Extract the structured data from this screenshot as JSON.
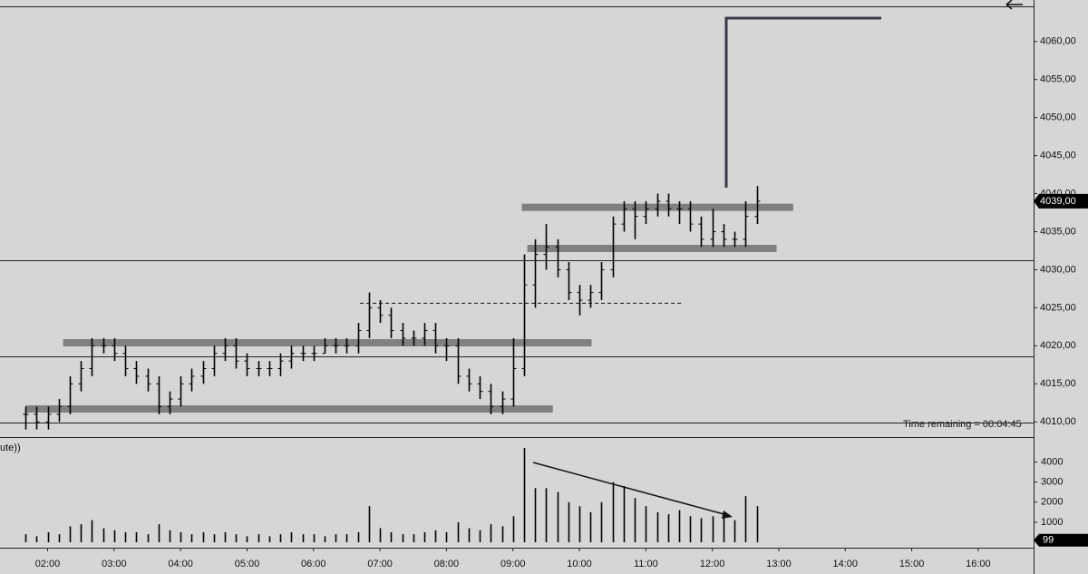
{
  "chart_data": [
    {
      "type": "ohlc",
      "x": [
        "01:40",
        "01:50",
        "02:00",
        "02:10",
        "02:20",
        "02:30",
        "02:40",
        "02:50",
        "03:00",
        "03:10",
        "03:20",
        "03:30",
        "03:40",
        "03:50",
        "04:00",
        "04:10",
        "04:20",
        "04:30",
        "04:40",
        "04:50",
        "05:00",
        "05:10",
        "05:20",
        "05:30",
        "05:40",
        "05:50",
        "06:00",
        "06:10",
        "06:20",
        "06:30",
        "06:40",
        "06:50",
        "07:00",
        "07:10",
        "07:20",
        "07:30",
        "07:40",
        "07:50",
        "08:00",
        "08:10",
        "08:20",
        "08:30",
        "08:40",
        "08:50",
        "09:00",
        "09:10",
        "09:20",
        "09:30",
        "09:40",
        "09:50",
        "10:00",
        "10:10",
        "10:20",
        "10:30",
        "10:40",
        "10:50",
        "11:00",
        "11:10",
        "11:20",
        "11:30",
        "11:40",
        "11:50",
        "12:00",
        "12:10",
        "12:20",
        "12:30",
        "12:40"
      ],
      "open": [
        4011,
        4011,
        4010,
        4011,
        4012,
        4015,
        4017,
        4020,
        4020,
        4019,
        4017,
        4016,
        4015,
        4012,
        4013,
        4015,
        4016,
        4017,
        4019,
        4020,
        4018,
        4017,
        4017,
        4017,
        4018,
        4019,
        4019,
        4019,
        4020,
        4020,
        4020,
        4022,
        4025,
        4024,
        4022,
        4021,
        4021,
        4022,
        4020,
        4020,
        4016,
        4015,
        4014,
        4012,
        4013,
        4017,
        4028,
        4032,
        4033,
        4030,
        4027,
        4026,
        4027,
        4030,
        4036,
        4038,
        4037,
        4038,
        4039,
        4038,
        4038,
        4036,
        4034,
        4035,
        4034,
        4034,
        4037
      ],
      "high": [
        4012,
        4012,
        4012,
        4013,
        4016,
        4018,
        4021,
        4021,
        4021,
        4020,
        4018,
        4017,
        4016,
        4014,
        4016,
        4017,
        4018,
        4020,
        4021,
        4021,
        4019,
        4018,
        4018,
        4019,
        4020,
        4020,
        4020,
        4021,
        4021,
        4021,
        4023,
        4027,
        4026,
        4025,
        4023,
        4022,
        4023,
        4023,
        4021,
        4021,
        4017,
        4016,
        4015,
        4014,
        4021,
        4032,
        4034,
        4036,
        4034,
        4031,
        4028,
        4028,
        4031,
        4037,
        4039,
        4039,
        4039,
        4040,
        4040,
        4039,
        4039,
        4037,
        4038,
        4036,
        4035,
        4039,
        4041
      ],
      "low": [
        4009,
        4009,
        4009,
        4010,
        4011,
        4014,
        4016,
        4019,
        4018,
        4016,
        4015,
        4014,
        4011,
        4011,
        4012,
        4014,
        4015,
        4016,
        4018,
        4017,
        4016,
        4016,
        4016,
        4016,
        4017,
        4018,
        4018,
        4019,
        4019,
        4019,
        4019,
        4021,
        4023,
        4021,
        4020,
        4020,
        4020,
        4019,
        4018,
        4015,
        4014,
        4013,
        4011,
        4011,
        4012,
        4016,
        4025,
        4030,
        4029,
        4026,
        4024,
        4025,
        4026,
        4029,
        4035,
        4034,
        4036,
        4037,
        4037,
        4036,
        4035,
        4033,
        4033,
        4033,
        4033,
        4033,
        4036
      ],
      "close": [
        4011,
        4010,
        4011,
        4012,
        4015,
        4017,
        4020,
        4020,
        4019,
        4017,
        4016,
        4015,
        4012,
        4013,
        4015,
        4016,
        4017,
        4019,
        4020,
        4018,
        4017,
        4017,
        4017,
        4018,
        4019,
        4019,
        4019,
        4020,
        4020,
        4020,
        4022,
        4025,
        4024,
        4022,
        4021,
        4021,
        4022,
        4020,
        4020,
        4016,
        4015,
        4014,
        4012,
        4013,
        4017,
        4028,
        4032,
        4033,
        4030,
        4027,
        4026,
        4027,
        4030,
        4036,
        4038,
        4037,
        4038,
        4039,
        4038,
        4038,
        4036,
        4034,
        4035,
        4034,
        4034,
        4037,
        4039
      ],
      "xlim": [
        "01:17",
        "16:50"
      ],
      "ylim": [
        4008,
        4064.5
      ],
      "yticks": [
        {
          "value": 4010,
          "label": "4010,00"
        },
        {
          "value": 4015,
          "label": "4015,00"
        },
        {
          "value": 4020,
          "label": "4020,00"
        },
        {
          "value": 4025,
          "label": "4025,00"
        },
        {
          "value": 4030,
          "label": "4030,00"
        },
        {
          "value": 4035,
          "label": "4035,00"
        },
        {
          "value": 4040,
          "label": "4040,00"
        },
        {
          "value": 4045,
          "label": "4045,00"
        },
        {
          "value": 4050,
          "label": "4050,00"
        },
        {
          "value": 4055,
          "label": "4055,00"
        },
        {
          "value": 4060,
          "label": "4060,00"
        }
      ],
      "zones": [
        {
          "price": 4038.2,
          "from": "09:08",
          "to": "13:13"
        },
        {
          "price": 4032.8,
          "from": "09:13",
          "to": "12:58"
        },
        {
          "price": 4020.4,
          "from": "02:14",
          "to": "10:11"
        },
        {
          "price": 4011.7,
          "from": "01:40",
          "to": "09:36"
        }
      ],
      "lines": [
        4031.2,
        4018.6,
        4009.9
      ],
      "dashed": {
        "price": 4025.6,
        "from": "06:42",
        "to": "11:32"
      },
      "last_price": {
        "value": 4039,
        "label": "4039,00"
      },
      "time_remaining": "Time remaining = 00:04:45"
    },
    {
      "type": "volume",
      "title": "ute))",
      "values": [
        400,
        300,
        500,
        400,
        800,
        900,
        1100,
        700,
        600,
        500,
        500,
        400,
        900,
        600,
        500,
        400,
        500,
        400,
        500,
        400,
        300,
        400,
        300,
        400,
        500,
        400,
        400,
        300,
        400,
        400,
        500,
        1800,
        700,
        500,
        400,
        400,
        500,
        600,
        500,
        1000,
        700,
        600,
        900,
        800,
        1300,
        4700,
        2700,
        2700,
        2500,
        2000,
        1800,
        1500,
        2000,
        3000,
        2800,
        2200,
        1800,
        1500,
        1400,
        1600,
        1300,
        1200,
        1300,
        1200,
        1100,
        2300,
        1800
      ],
      "ylim": [
        0,
        5200
      ],
      "yticks": [
        1000,
        2000,
        3000,
        4000
      ],
      "last_value": 99,
      "xticks": [
        "02:00",
        "03:00",
        "04:00",
        "05:00",
        "06:00",
        "07:00",
        "08:00",
        "09:00",
        "10:00",
        "11:00",
        "12:00",
        "13:00",
        "14:00",
        "15:00",
        "16:00"
      ]
    }
  ]
}
